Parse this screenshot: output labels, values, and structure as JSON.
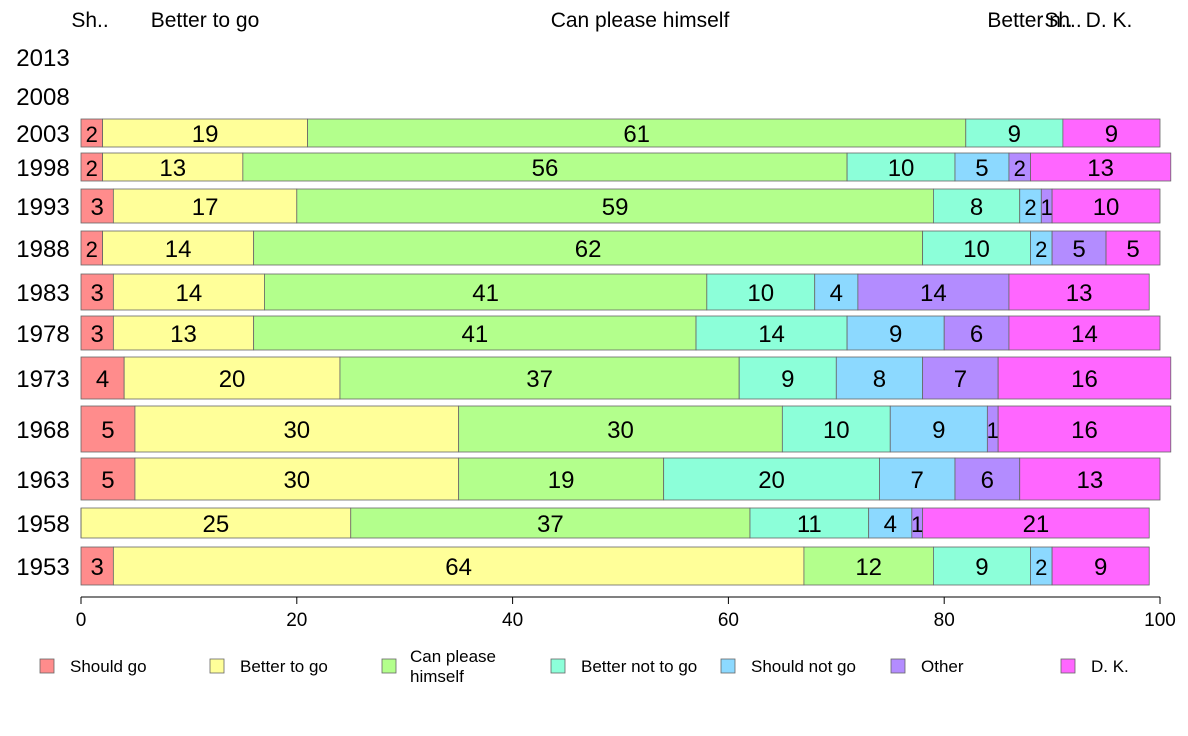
{
  "chart_data": {
    "type": "bar",
    "orientation": "horizontal",
    "stacked": true,
    "categories": [
      "2013",
      "2008",
      "2003",
      "1998",
      "1993",
      "1988",
      "1983",
      "1978",
      "1973",
      "1968",
      "1963",
      "1958",
      "1953"
    ],
    "series": [
      {
        "name": "Should go",
        "color": "#ff8c8c",
        "values": [
          null,
          null,
          2,
          2,
          3,
          2,
          3,
          3,
          4,
          5,
          5,
          0,
          3
        ]
      },
      {
        "name": "Better to go",
        "color": "#ffff99",
        "values": [
          null,
          null,
          19,
          13,
          17,
          14,
          14,
          13,
          20,
          30,
          30,
          25,
          64
        ]
      },
      {
        "name": "Can please himself",
        "color": "#b3ff8c",
        "values": [
          null,
          null,
          61,
          56,
          59,
          62,
          41,
          41,
          37,
          30,
          19,
          37,
          12
        ]
      },
      {
        "name": "Better not to go",
        "color": "#8cffd9",
        "values": [
          null,
          null,
          9,
          10,
          8,
          10,
          10,
          14,
          9,
          10,
          20,
          11,
          9
        ]
      },
      {
        "name": "Should not go",
        "color": "#8cd9ff",
        "values": [
          null,
          null,
          0,
          5,
          2,
          2,
          4,
          9,
          8,
          9,
          7,
          4,
          2
        ]
      },
      {
        "name": "Other",
        "color": "#b38cff",
        "values": [
          null,
          null,
          0,
          2,
          1,
          5,
          14,
          6,
          7,
          1,
          6,
          1,
          0
        ]
      },
      {
        "name": "D. K.",
        "color": "#ff66ff",
        "values": [
          null,
          null,
          9,
          13,
          10,
          5,
          13,
          14,
          16,
          16,
          13,
          21,
          9
        ]
      }
    ],
    "top_labels": [
      "Sh..",
      "Better to go",
      "Can please himself",
      "Better n..",
      "Sh..",
      "D. K."
    ],
    "legend_labels": [
      "Should go",
      "Better to go",
      "Can please\nhimself",
      "Better not to go",
      "Should not go",
      "Other",
      "D. K."
    ],
    "xlim": [
      0,
      100
    ],
    "xticks": [
      0,
      20,
      40,
      60,
      80,
      100
    ],
    "grid": false,
    "legend_position": "bottom"
  }
}
